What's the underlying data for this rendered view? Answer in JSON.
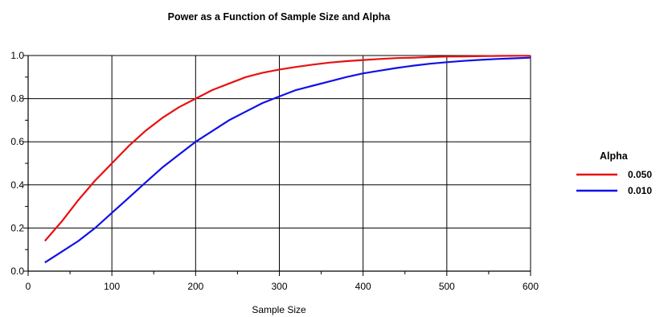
{
  "chart_data": {
    "type": "line",
    "title": "Power as a Function of Sample Size and Alpha",
    "xlabel": "Sample Size",
    "ylabel": "",
    "xlim": [
      0,
      600
    ],
    "ylim": [
      0,
      1
    ],
    "x_ticks": [
      "0",
      "100",
      "200",
      "300",
      "400",
      "500",
      "600"
    ],
    "y_ticks": [
      "0.0",
      "0.2",
      "0.4",
      "0.6",
      "0.8",
      "1.0"
    ],
    "grid": true,
    "legend": {
      "title": "Alpha",
      "position": "right"
    },
    "x": [
      20,
      40,
      60,
      80,
      100,
      120,
      140,
      160,
      180,
      200,
      220,
      240,
      260,
      280,
      300,
      320,
      340,
      360,
      380,
      400,
      420,
      440,
      460,
      480,
      500,
      520,
      540,
      560,
      580,
      600
    ],
    "series": [
      {
        "name": "0.050",
        "color": "#e81010",
        "values": [
          0.14,
          0.23,
          0.33,
          0.42,
          0.5,
          0.58,
          0.65,
          0.71,
          0.76,
          0.8,
          0.84,
          0.87,
          0.9,
          0.92,
          0.935,
          0.947,
          0.958,
          0.967,
          0.974,
          0.979,
          0.984,
          0.988,
          0.99,
          0.993,
          0.995,
          0.996,
          0.997,
          0.998,
          0.999,
          0.999
        ]
      },
      {
        "name": "0.010",
        "color": "#1010e8",
        "values": [
          0.04,
          0.09,
          0.14,
          0.2,
          0.27,
          0.34,
          0.41,
          0.48,
          0.54,
          0.6,
          0.65,
          0.7,
          0.74,
          0.78,
          0.81,
          0.84,
          0.86,
          0.88,
          0.9,
          0.917,
          0.93,
          0.942,
          0.953,
          0.962,
          0.969,
          0.975,
          0.98,
          0.984,
          0.987,
          0.99
        ]
      }
    ]
  }
}
